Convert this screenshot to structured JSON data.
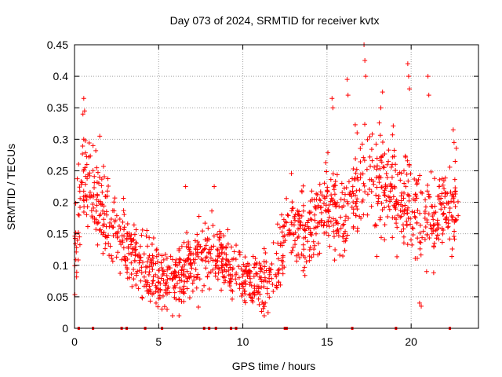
{
  "chart_data": {
    "type": "scatter",
    "title": "Day 073 of 2024, SRMTID for receiver kvtx",
    "xlabel": "GPS time / hours",
    "ylabel": "SRMTID / TECUs",
    "xlim": [
      0,
      24
    ],
    "ylim": [
      0,
      0.45
    ],
    "xticks": [
      0,
      5,
      10,
      15,
      20
    ],
    "xtick_labels": [
      "0",
      "5",
      "10",
      "15",
      "20"
    ],
    "yticks": [
      0,
      0.05,
      0.1,
      0.15,
      0.2,
      0.25,
      0.3,
      0.35,
      0.4,
      0.45
    ],
    "ytick_labels": [
      "0",
      "0.05",
      "0.1",
      "0.15",
      "0.2",
      "0.25",
      "0.3",
      "0.35",
      "0.4",
      "0.45"
    ],
    "grid": true,
    "marker": "+",
    "marker_color": "#ff0000",
    "series": [
      {
        "name": "SRMTID",
        "trend": [
          {
            "t": 0.0,
            "y": 0.12,
            "spread": 0.05
          },
          {
            "t": 0.5,
            "y": 0.24,
            "spread": 0.06
          },
          {
            "t": 1.0,
            "y": 0.21,
            "spread": 0.06
          },
          {
            "t": 2.0,
            "y": 0.17,
            "spread": 0.05
          },
          {
            "t": 3.0,
            "y": 0.14,
            "spread": 0.04
          },
          {
            "t": 4.0,
            "y": 0.1,
            "spread": 0.04
          },
          {
            "t": 5.0,
            "y": 0.08,
            "spread": 0.035
          },
          {
            "t": 6.0,
            "y": 0.08,
            "spread": 0.04
          },
          {
            "t": 7.0,
            "y": 0.11,
            "spread": 0.04
          },
          {
            "t": 8.0,
            "y": 0.12,
            "spread": 0.04
          },
          {
            "t": 9.0,
            "y": 0.1,
            "spread": 0.04
          },
          {
            "t": 10.0,
            "y": 0.08,
            "spread": 0.03
          },
          {
            "t": 11.0,
            "y": 0.07,
            "spread": 0.03
          },
          {
            "t": 12.0,
            "y": 0.1,
            "spread": 0.04
          },
          {
            "t": 12.8,
            "y": 0.17,
            "spread": 0.04
          },
          {
            "t": 14.0,
            "y": 0.15,
            "spread": 0.04
          },
          {
            "t": 15.0,
            "y": 0.2,
            "spread": 0.05
          },
          {
            "t": 16.0,
            "y": 0.17,
            "spread": 0.05
          },
          {
            "t": 17.0,
            "y": 0.24,
            "spread": 0.06
          },
          {
            "t": 18.0,
            "y": 0.22,
            "spread": 0.06
          },
          {
            "t": 19.0,
            "y": 0.21,
            "spread": 0.06
          },
          {
            "t": 20.0,
            "y": 0.19,
            "spread": 0.06
          },
          {
            "t": 21.0,
            "y": 0.17,
            "spread": 0.05
          },
          {
            "t": 22.0,
            "y": 0.2,
            "spread": 0.05
          },
          {
            "t": 22.8,
            "y": 0.21,
            "spread": 0.05
          }
        ],
        "spikes": [
          {
            "t": 0.55,
            "y": 0.365
          },
          {
            "t": 0.6,
            "y": 0.345
          },
          {
            "t": 0.5,
            "y": 0.34
          },
          {
            "t": 1.5,
            "y": 0.305
          },
          {
            "t": 1.1,
            "y": 0.29
          },
          {
            "t": 15.3,
            "y": 0.365
          },
          {
            "t": 15.35,
            "y": 0.35
          },
          {
            "t": 16.2,
            "y": 0.395
          },
          {
            "t": 16.25,
            "y": 0.37
          },
          {
            "t": 17.2,
            "y": 0.45
          },
          {
            "t": 17.25,
            "y": 0.425
          },
          {
            "t": 17.3,
            "y": 0.4
          },
          {
            "t": 18.3,
            "y": 0.375
          },
          {
            "t": 18.2,
            "y": 0.35
          },
          {
            "t": 19.8,
            "y": 0.42
          },
          {
            "t": 19.85,
            "y": 0.4
          },
          {
            "t": 19.9,
            "y": 0.38
          },
          {
            "t": 21.0,
            "y": 0.4
          },
          {
            "t": 21.05,
            "y": 0.37
          },
          {
            "t": 22.5,
            "y": 0.315
          },
          {
            "t": 22.55,
            "y": 0.295
          },
          {
            "t": 20.5,
            "y": 0.04
          },
          {
            "t": 20.6,
            "y": 0.035
          },
          {
            "t": 5.5,
            "y": 0.03
          },
          {
            "t": 11.5,
            "y": 0.025
          },
          {
            "t": 6.6,
            "y": 0.225
          },
          {
            "t": 8.3,
            "y": 0.225
          }
        ],
        "zero_markers": [
          0.25,
          1.1,
          2.8,
          3.1,
          4.2,
          5.2,
          7.7,
          8.0,
          8.4,
          9.3,
          9.6,
          12.5,
          12.6,
          16.5,
          19.1,
          22.3
        ]
      }
    ]
  }
}
